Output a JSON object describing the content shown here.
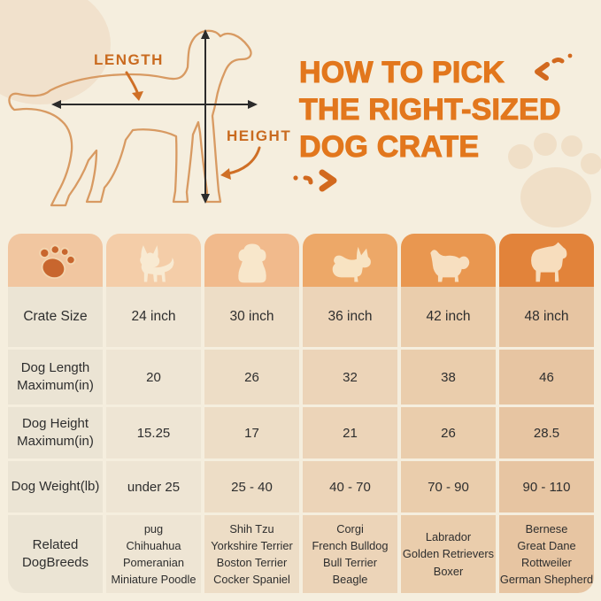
{
  "palette": {
    "page_bg": "#f5eede",
    "title_orange": "#e2771d",
    "diagram_label_orange": "#c96a1f",
    "dog_outline": "#d89a62",
    "measure_arrow": "#2b2b2b",
    "curved_arrow": "#cf6f26",
    "table_text": "#2e2e2e",
    "paw_icon": "#c8662e"
  },
  "header": {
    "title_line1": "HOW TO PICK",
    "title_line2": "THE RIGHT-SIZED",
    "title_line3": "DOG CRATE"
  },
  "diagram": {
    "length_label": "LENGTH",
    "height_label": "HEIGHT",
    "illustration": "dog-side-outline"
  },
  "table": {
    "label_column": {
      "header_icon": "paw-icon",
      "header_bg": "#f1c6a0",
      "cell_bg": "#ebe4d4",
      "rows": {
        "crate_size": "Crate Size",
        "dog_length": "Dog Length\nMaximum(in)",
        "dog_height": "Dog Height\nMaximum(in)",
        "dog_weight": "Dog Weight(lb)",
        "breeds": "Related\nDogBreeds"
      }
    },
    "columns": [
      {
        "icon": "chihuahua-icon",
        "header_bg": "#f4cda8",
        "cell_bg": "#eee5d4",
        "size": "24 inch",
        "max_length": "20",
        "max_height": "15.25",
        "weight": "under 25",
        "breeds": [
          "pug",
          "Chihuahua",
          "Pomeranian",
          "Miniature Poodle"
        ]
      },
      {
        "icon": "shih-tzu-icon",
        "header_bg": "#f1ba8c",
        "cell_bg": "#edddc6",
        "size": "30 inch",
        "max_length": "26",
        "max_height": "17",
        "weight": "25 - 40",
        "breeds": [
          "Shih Tzu",
          "Yorkshire Terrier",
          "Boston Terrier",
          "Cocker Spaniel"
        ]
      },
      {
        "icon": "corgi-icon",
        "header_bg": "#eda868",
        "cell_bg": "#ecd4b8",
        "size": "36 inch",
        "max_length": "32",
        "max_height": "21",
        "weight": "40 - 70",
        "breeds": [
          "Corgi",
          "French Bulldog",
          "Bull Terrier",
          "Beagle"
        ]
      },
      {
        "icon": "retriever-icon",
        "header_bg": "#e99750",
        "cell_bg": "#eacdac",
        "size": "42 inch",
        "max_length": "38",
        "max_height": "26",
        "weight": "70 - 90",
        "breeds": [
          "Labrador",
          "Golden Retrievers",
          "Boxer"
        ]
      },
      {
        "icon": "mastiff-icon",
        "header_bg": "#e2833a",
        "cell_bg": "#e7c5a2",
        "size": "48 inch",
        "max_length": "46",
        "max_height": "28.5",
        "weight": "90 - 110",
        "breeds": [
          "Bernese",
          "Great Dane",
          "Rottweiler",
          "German Shepherd"
        ]
      }
    ]
  }
}
